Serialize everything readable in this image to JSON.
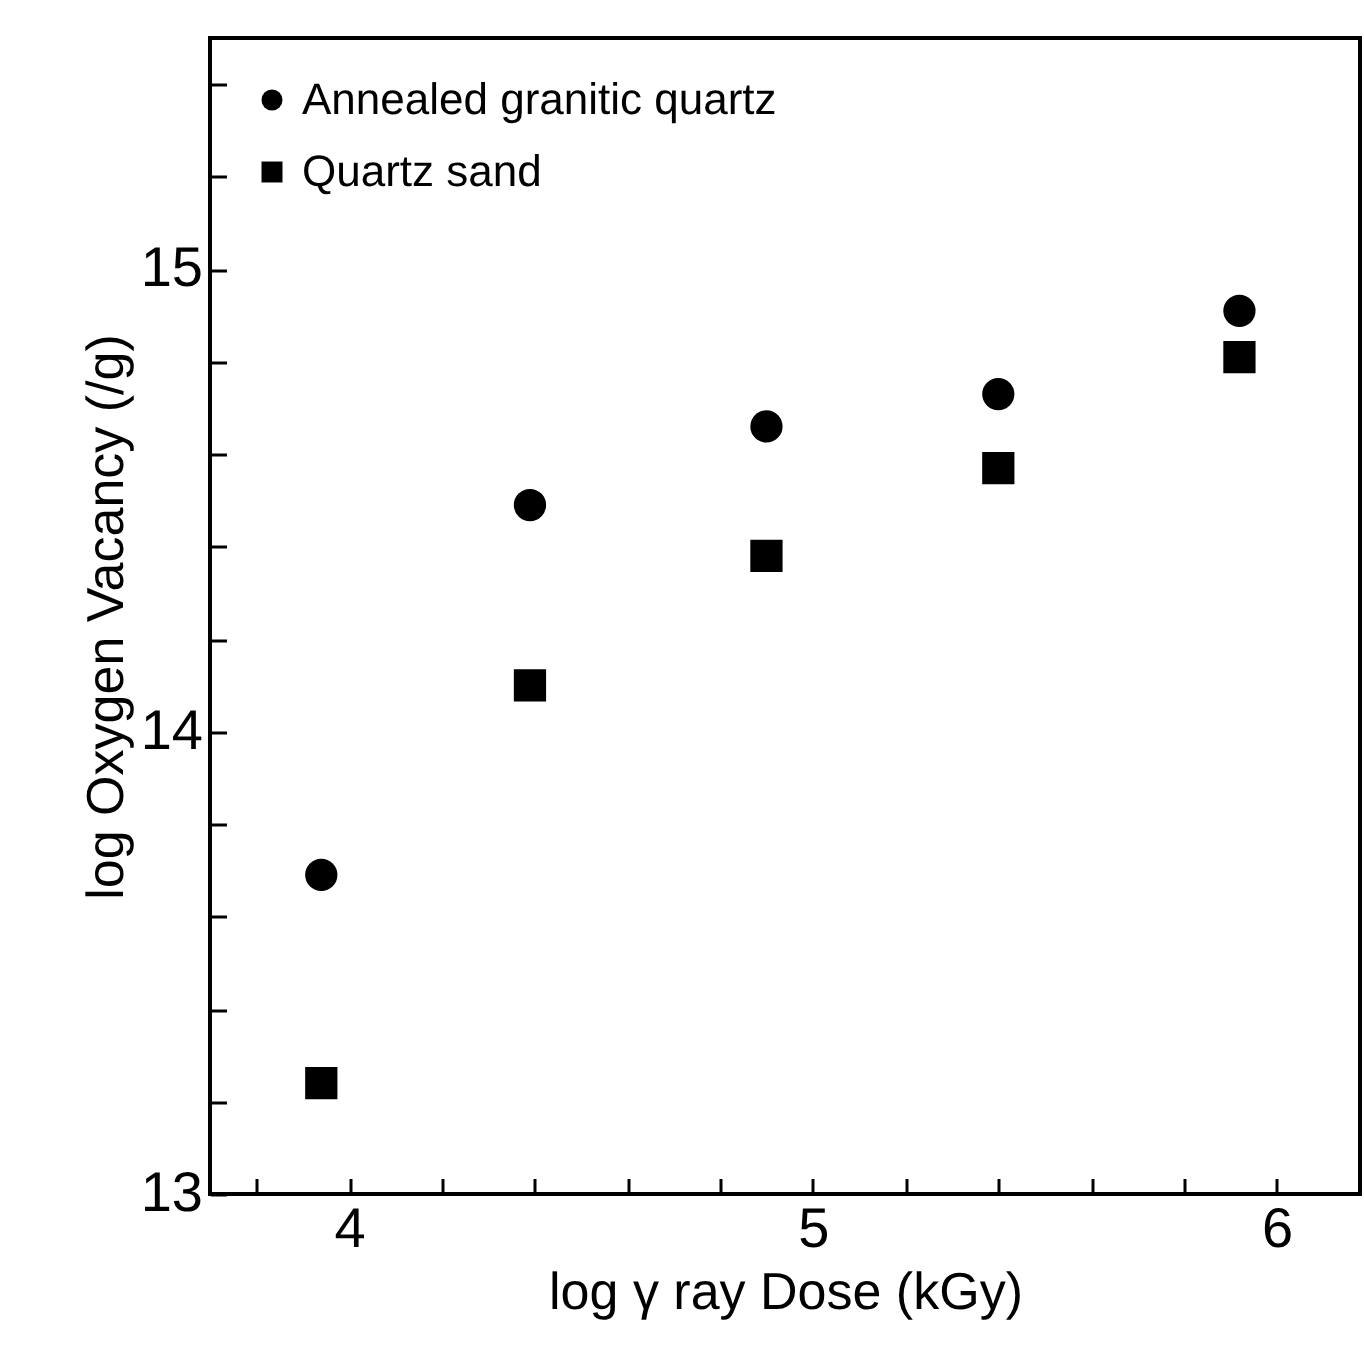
{
  "chart_data": {
    "type": "scatter",
    "xlabel": "log γ ray Dose (kGy)",
    "ylabel": "log Oxygen Vacancy (/g)",
    "xlim": [
      3.7,
      6.18
    ],
    "ylim": [
      13,
      15.5
    ],
    "xticks": [
      {
        "value": 3.8,
        "label": null
      },
      4,
      {
        "value": 4.2,
        "label": null
      },
      {
        "value": 4.4,
        "label": null
      },
      {
        "value": 4.6,
        "label": null
      },
      {
        "value": 4.8,
        "label": null
      },
      5,
      {
        "value": 5.2,
        "label": null
      },
      {
        "value": 5.4,
        "label": null
      },
      {
        "value": 5.6,
        "label": null
      },
      {
        "value": 5.8,
        "label": null
      },
      6
    ],
    "yticks": [
      13,
      {
        "value": 13.2,
        "label": null
      },
      {
        "value": 13.4,
        "label": null
      },
      {
        "value": 13.6,
        "label": null
      },
      {
        "value": 13.8,
        "label": null
      },
      14,
      {
        "value": 14.2,
        "label": null
      },
      {
        "value": 14.4,
        "label": null
      },
      {
        "value": 14.6,
        "label": null
      },
      {
        "value": 14.8,
        "label": null
      },
      15,
      {
        "value": 15.2,
        "label": null
      },
      {
        "value": 15.4,
        "label": null
      }
    ],
    "x": [
      3.94,
      4.39,
      4.9,
      5.4,
      5.92
    ],
    "series": [
      {
        "name": "Annealed granitic quartz",
        "color": "#000000",
        "marker": "circle",
        "values": [
          13.69,
          14.49,
          14.66,
          14.73,
          14.91
        ]
      },
      {
        "name": "Quartz sand",
        "color": "#000000",
        "marker": "square",
        "values": [
          13.24,
          14.1,
          14.38,
          14.57,
          14.81
        ]
      }
    ],
    "grid": false,
    "legend": "top left"
  }
}
